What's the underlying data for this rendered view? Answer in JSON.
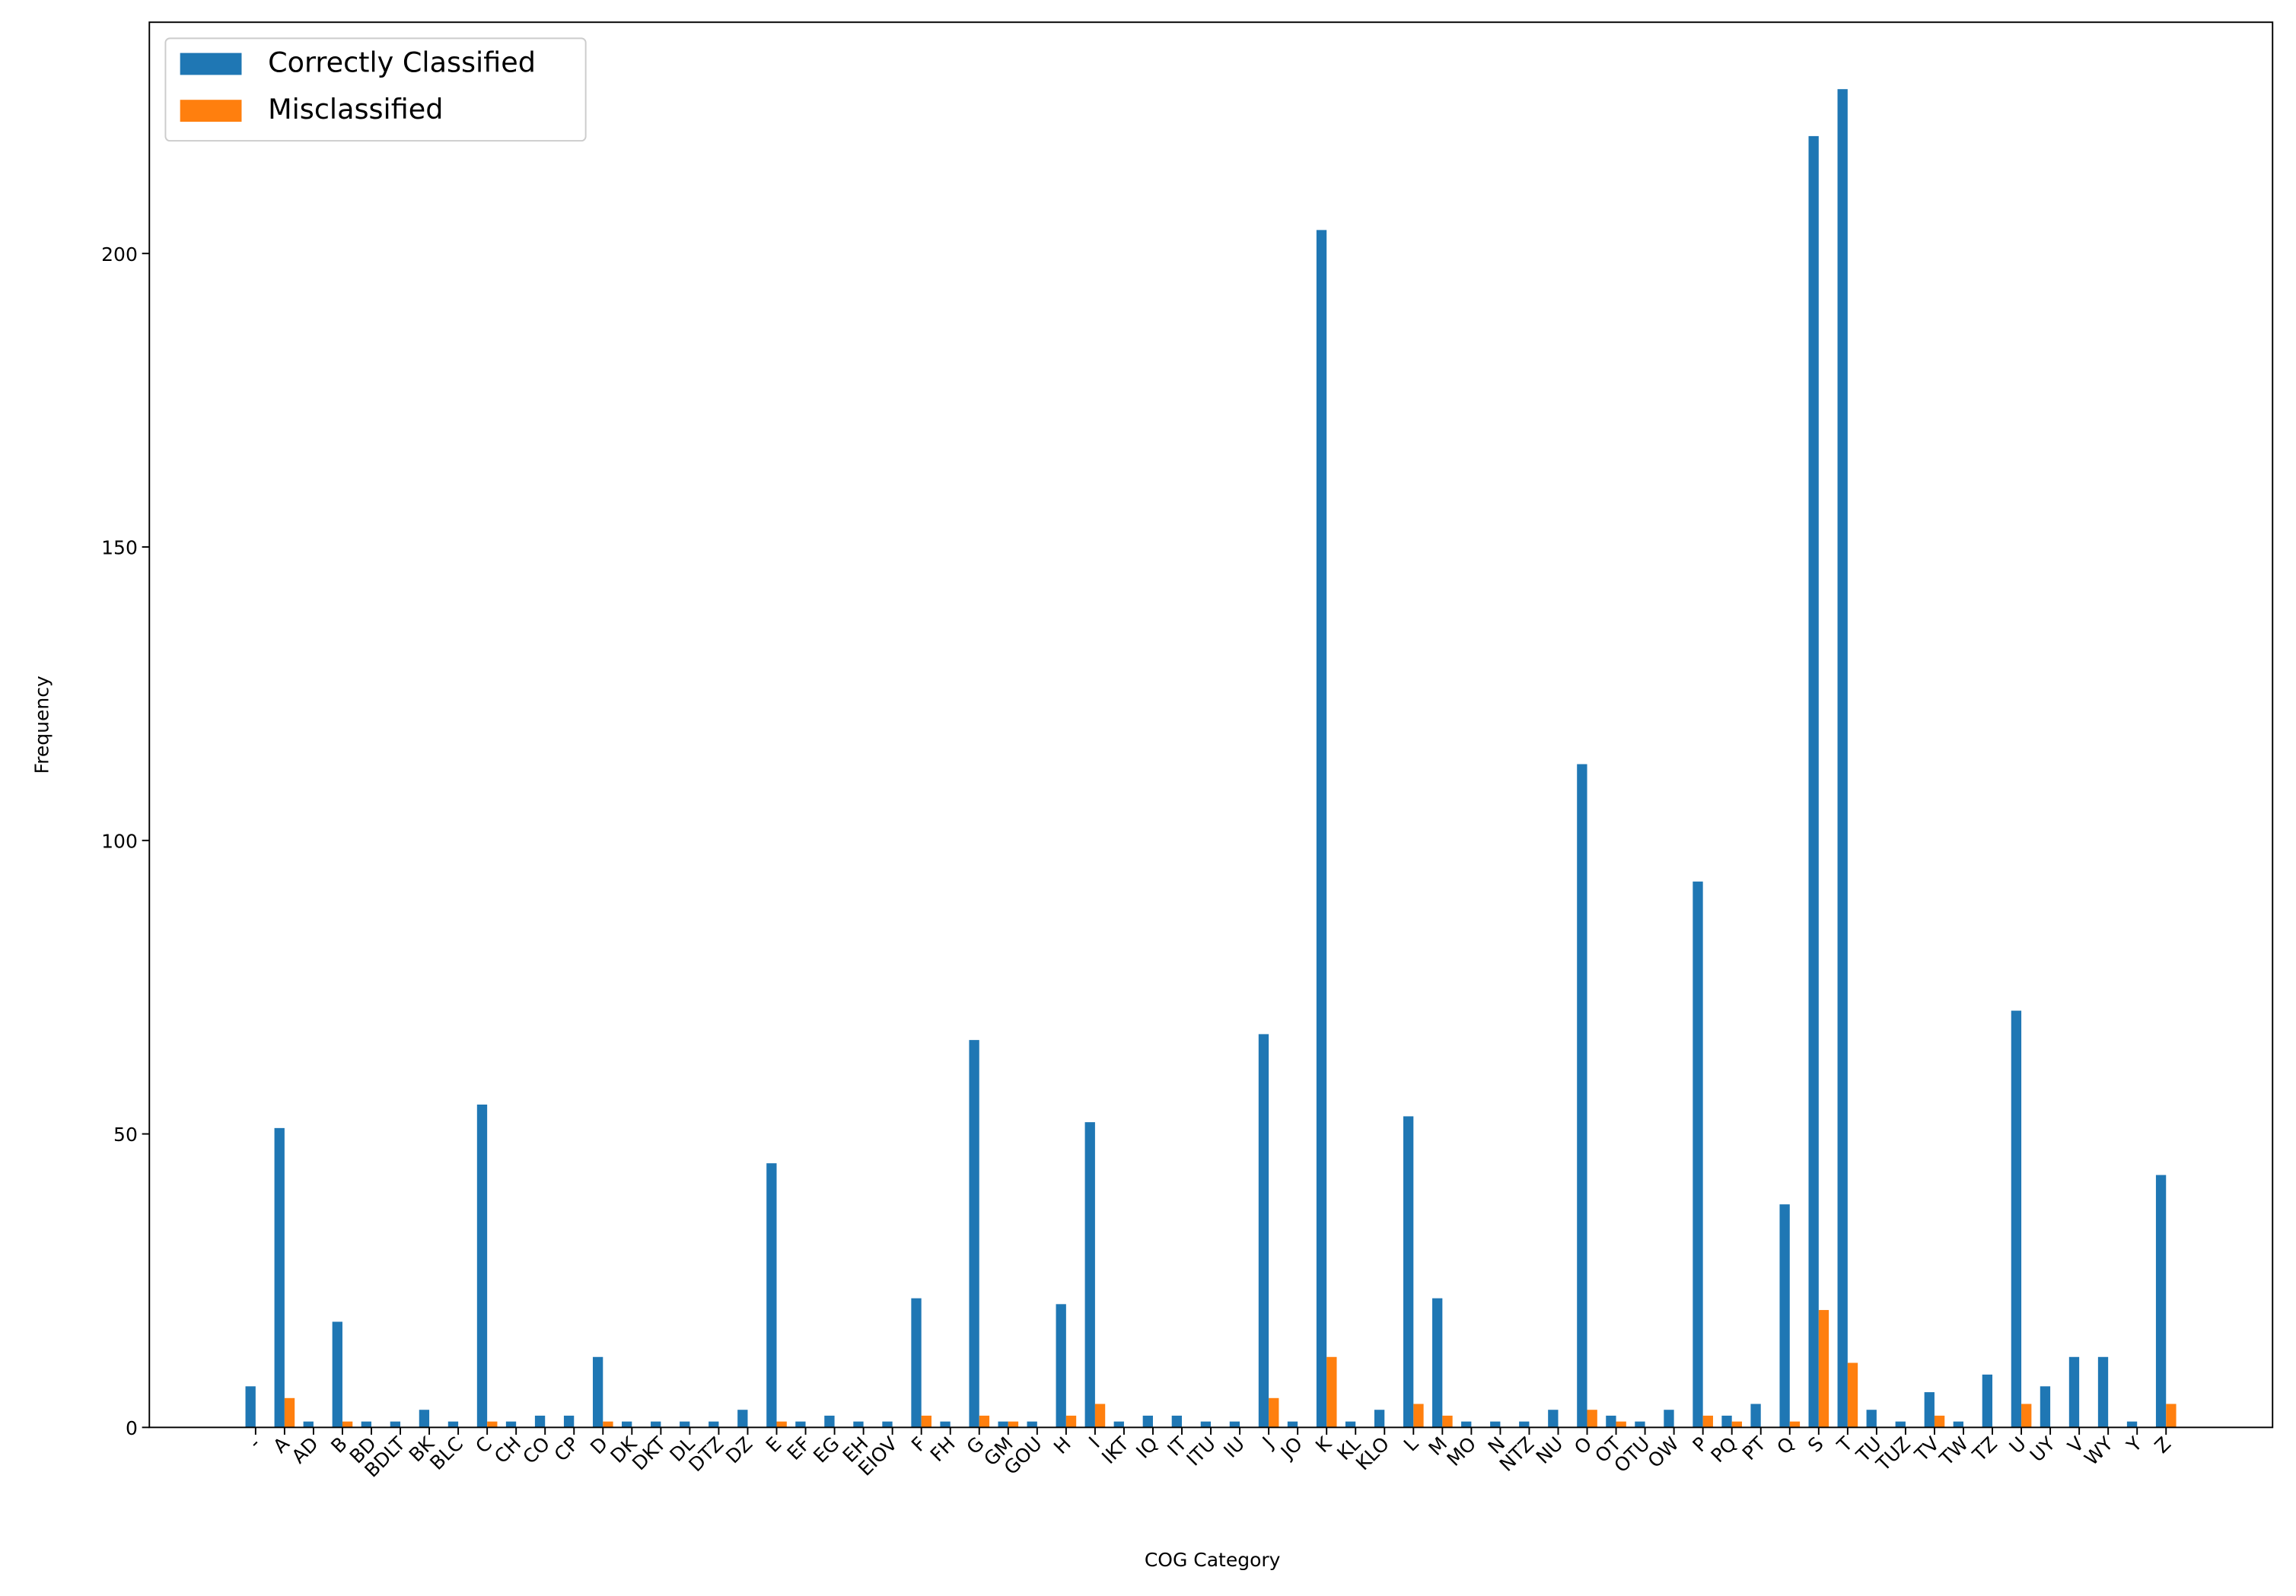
{
  "chart_data": {
    "type": "bar",
    "x_label": "COG Category",
    "y_label": "Frequency",
    "categories": [
      "-",
      "A",
      "AD",
      "B",
      "BD",
      "BDLT",
      "BK",
      "BLC",
      "C",
      "CH",
      "CO",
      "CP",
      "D",
      "DK",
      "DKT",
      "DL",
      "DTZ",
      "DZ",
      "E",
      "EF",
      "EG",
      "EH",
      "EIOV",
      "F",
      "FH",
      "G",
      "GM",
      "GOU",
      "H",
      "I",
      "IKT",
      "IQ",
      "IT",
      "ITU",
      "IU",
      "J",
      "JO",
      "K",
      "KL",
      "KLO",
      "L",
      "M",
      "MO",
      "N",
      "NTZ",
      "NU",
      "O",
      "OT",
      "OTU",
      "OW",
      "P",
      "PQ",
      "PT",
      "Q",
      "S",
      "T",
      "TU",
      "TUZ",
      "TV",
      "TW",
      "TZ",
      "U",
      "UY",
      "V",
      "WY",
      "Y",
      "Z"
    ],
    "series": [
      {
        "name": "Correctly Classified",
        "color": "#1f77b4",
        "values": [
          7,
          51,
          1,
          18,
          1,
          1,
          3,
          1,
          55,
          1,
          2,
          2,
          12,
          1,
          1,
          1,
          1,
          3,
          45,
          1,
          2,
          1,
          1,
          22,
          1,
          66,
          1,
          1,
          21,
          52,
          1,
          2,
          2,
          1,
          1,
          67,
          1,
          204,
          1,
          3,
          53,
          22,
          1,
          1,
          1,
          3,
          113,
          2,
          1,
          3,
          93,
          2,
          4,
          38,
          220,
          228,
          3,
          1,
          6,
          1,
          9,
          71,
          7,
          12,
          12,
          1,
          43
        ]
      },
      {
        "name": "Misclassified",
        "color": "#ff7f0e",
        "values": [
          0,
          5,
          0,
          1,
          0,
          0,
          0,
          0,
          1,
          0,
          0,
          0,
          1,
          0,
          0,
          0,
          0,
          0,
          1,
          0,
          0,
          0,
          0,
          2,
          0,
          2,
          1,
          0,
          2,
          4,
          0,
          0,
          0,
          0,
          0,
          5,
          0,
          12,
          0,
          0,
          4,
          2,
          0,
          0,
          0,
          0,
          3,
          1,
          0,
          0,
          2,
          1,
          0,
          1,
          20,
          11,
          0,
          0,
          2,
          0,
          0,
          4,
          0,
          0,
          0,
          0,
          4
        ]
      }
    ],
    "ylim": [
      0,
      239.4
    ],
    "yticks": [
      0,
      50,
      100,
      150,
      200
    ],
    "legend": "upper left"
  }
}
